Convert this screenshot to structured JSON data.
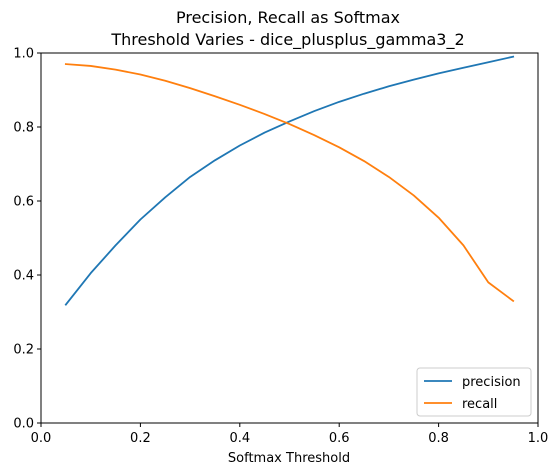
{
  "chart_data": {
    "type": "line",
    "title_lines": [
      "Precision, Recall as Softmax",
      "Threshold Varies - dice_plusplus_gamma3_2"
    ],
    "xlabel": "Softmax Threshold",
    "ylabel": "",
    "xlim": [
      0.0,
      1.0
    ],
    "ylim": [
      0.0,
      1.0
    ],
    "xticks": [
      "0.0",
      "0.2",
      "0.4",
      "0.6",
      "0.8",
      "1.0"
    ],
    "yticks": [
      "0.0",
      "0.2",
      "0.4",
      "0.6",
      "0.8",
      "1.0"
    ],
    "grid": false,
    "legend_position": "lower-right",
    "x": [
      0.05,
      0.1,
      0.15,
      0.2,
      0.25,
      0.3,
      0.35,
      0.4,
      0.45,
      0.5,
      0.55,
      0.6,
      0.65,
      0.7,
      0.75,
      0.8,
      0.85,
      0.9,
      0.95
    ],
    "series": [
      {
        "name": "precision",
        "color": "#1f77b4",
        "values": [
          0.32,
          0.405,
          0.48,
          0.55,
          0.61,
          0.665,
          0.71,
          0.75,
          0.785,
          0.815,
          0.843,
          0.868,
          0.89,
          0.91,
          0.928,
          0.945,
          0.96,
          0.975,
          0.99
        ]
      },
      {
        "name": "recall",
        "color": "#ff7f0e",
        "values": [
          0.97,
          0.965,
          0.955,
          0.942,
          0.925,
          0.905,
          0.883,
          0.86,
          0.835,
          0.808,
          0.778,
          0.745,
          0.708,
          0.665,
          0.615,
          0.555,
          0.48,
          0.38,
          0.33
        ]
      }
    ]
  }
}
